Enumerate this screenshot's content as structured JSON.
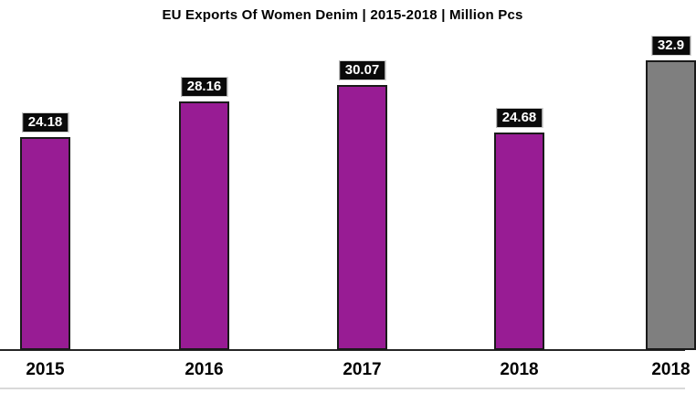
{
  "chart_data": {
    "type": "bar",
    "title": "EU Exports Of Women Denim | 2015-2018 | Million Pcs",
    "categories": [
      "2015",
      "2016",
      "2017",
      "2018",
      "2018"
    ],
    "values": [
      24.18,
      28.16,
      30.07,
      24.68,
      32.9
    ],
    "value_labels": [
      "24.18",
      "28.16",
      "30.07",
      "24.68",
      "32.9"
    ],
    "bar_colors": [
      "#981C94",
      "#981C94",
      "#981C94",
      "#981C94",
      "#7F7F7F"
    ],
    "xlabel": "",
    "ylabel": "",
    "ylim": [
      0,
      36
    ],
    "grid": false,
    "legend": "none",
    "y_axis_visible": false,
    "last_bar_clipped_at_right_edge": true
  },
  "colors": {
    "bar_purple": "#981C94",
    "bar_gray": "#7F7F7F",
    "bar_border": "#1A1A1A",
    "value_label_bg": "#0A0A0A",
    "value_label_text": "#FFFFFF",
    "axis_line": "#262626",
    "bottom_divider": "#D9D9D9",
    "title_text": "#000000",
    "background": "#FFFFFF"
  }
}
